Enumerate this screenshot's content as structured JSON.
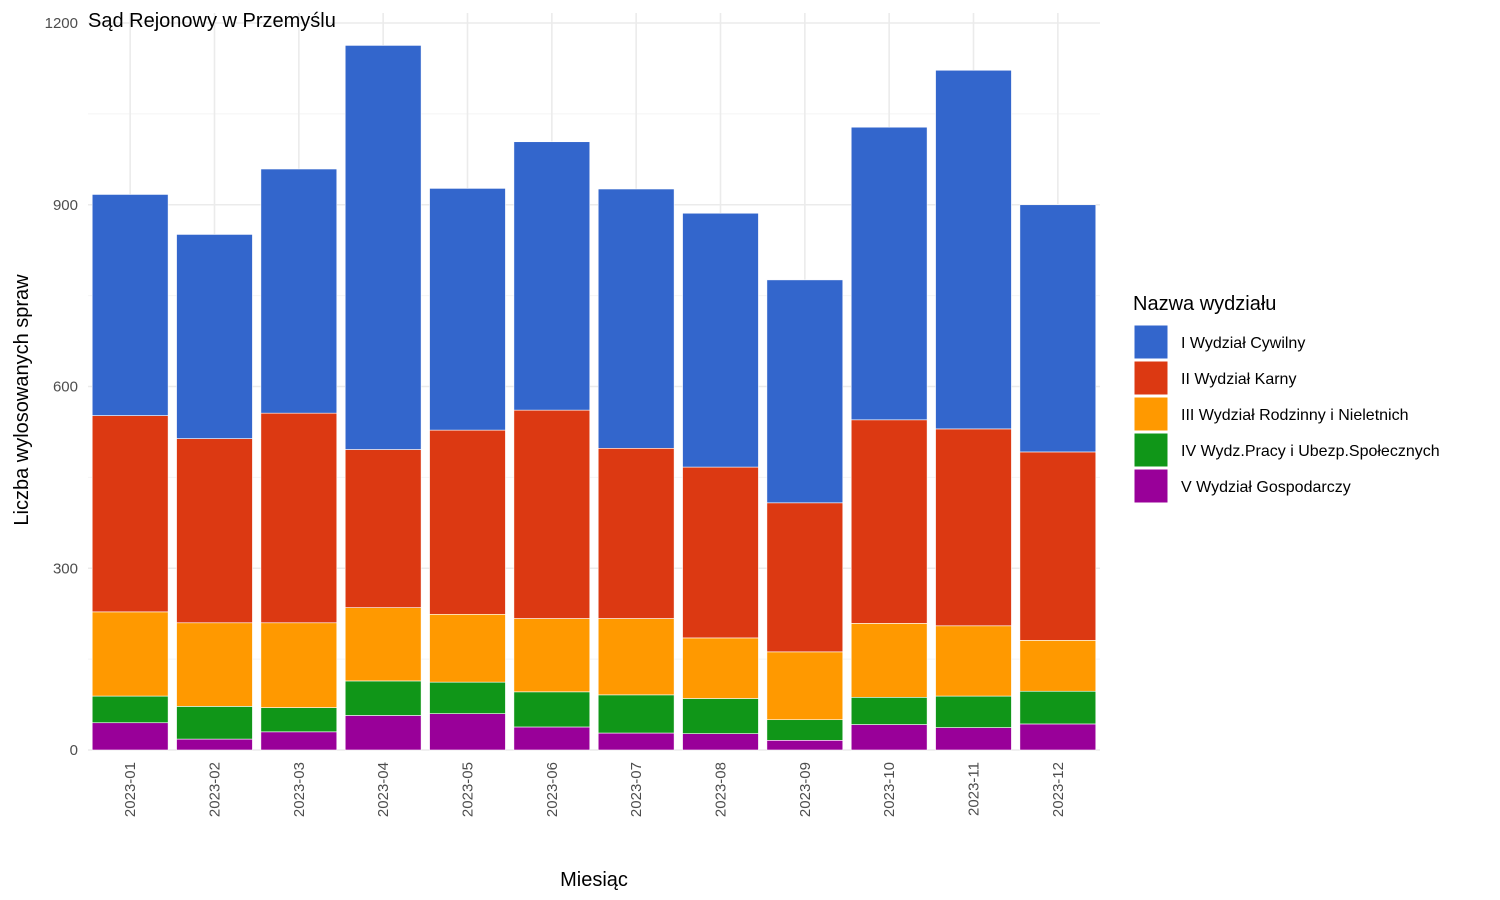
{
  "chart_data": {
    "type": "bar",
    "stacked": true,
    "title": "Sąd Rejonowy w Przemyślu",
    "xlabel": "Miesiąc",
    "ylabel": "Liczba wylosowanych spraw",
    "ylim": [
      0,
      1200
    ],
    "yticks": [
      0,
      300,
      600,
      900,
      1200
    ],
    "grid": true,
    "legend_title": "Nazwa wydziału",
    "legend_position": "right",
    "categories": [
      "2023-01",
      "2023-02",
      "2023-03",
      "2023-04",
      "2023-05",
      "2023-06",
      "2023-07",
      "2023-08",
      "2023-09",
      "2023-10",
      "2023-11",
      "2023-12"
    ],
    "series": [
      {
        "name": "V Wydział Gospodarczy",
        "color": "#990099",
        "values": [
          45,
          18,
          30,
          57,
          60,
          38,
          28,
          27,
          16,
          42,
          37,
          43
        ]
      },
      {
        "name": "IV Wydz.Pracy i Ubezp.Społecznych",
        "color": "#109618",
        "values": [
          44,
          54,
          40,
          57,
          52,
          58,
          63,
          58,
          34,
          45,
          52,
          54
        ]
      },
      {
        "name": "III Wydział Rodzinny i Nieletnich",
        "color": "#ff9900",
        "values": [
          139,
          138,
          140,
          121,
          112,
          121,
          126,
          100,
          112,
          122,
          116,
          84
        ]
      },
      {
        "name": "II Wydział Karny",
        "color": "#dc3912",
        "values": [
          324,
          304,
          346,
          261,
          304,
          344,
          281,
          282,
          246,
          336,
          325,
          311
        ]
      },
      {
        "name": "I Wydział Cywilny",
        "color": "#3366cc",
        "values": [
          365,
          337,
          403,
          667,
          399,
          443,
          428,
          419,
          368,
          483,
          592,
          408
        ]
      }
    ],
    "legend_order": [
      "I Wydział Cywilny",
      "II Wydział Karny",
      "III Wydział Rodzinny i Nieletnich",
      "IV Wydz.Pracy i Ubezp.Społecznych",
      "V Wydział Gospodarczy"
    ]
  }
}
